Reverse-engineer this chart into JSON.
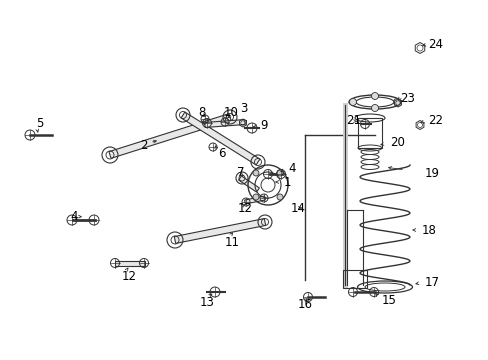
{
  "bg_color": "#ffffff",
  "fig_width": 4.89,
  "fig_height": 3.6,
  "dpi": 100,
  "line_color": "#333333",
  "fontsize": 8.5
}
